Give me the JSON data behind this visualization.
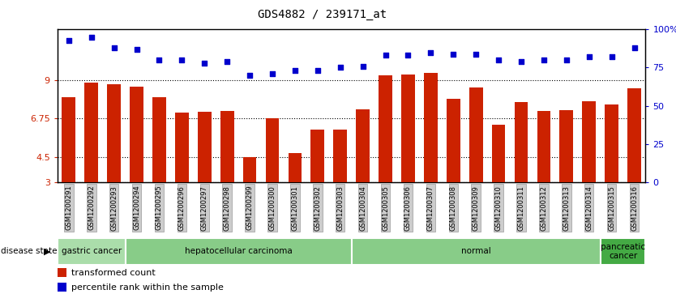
{
  "title": "GDS4882 / 239171_at",
  "samples": [
    "GSM1200291",
    "GSM1200292",
    "GSM1200293",
    "GSM1200294",
    "GSM1200295",
    "GSM1200296",
    "GSM1200297",
    "GSM1200298",
    "GSM1200299",
    "GSM1200300",
    "GSM1200301",
    "GSM1200302",
    "GSM1200303",
    "GSM1200304",
    "GSM1200305",
    "GSM1200306",
    "GSM1200307",
    "GSM1200308",
    "GSM1200309",
    "GSM1200310",
    "GSM1200311",
    "GSM1200312",
    "GSM1200313",
    "GSM1200314",
    "GSM1200315",
    "GSM1200316"
  ],
  "bar_values": [
    8.0,
    8.85,
    8.75,
    8.65,
    8.0,
    7.1,
    7.15,
    7.2,
    4.5,
    6.75,
    4.7,
    6.1,
    6.1,
    7.3,
    9.3,
    9.35,
    9.45,
    7.9,
    8.6,
    6.4,
    7.7,
    7.2,
    7.25,
    7.75,
    7.6,
    8.55
  ],
  "percentile_values": [
    93,
    95,
    88,
    87,
    80,
    80,
    78,
    79,
    70,
    71,
    73,
    73,
    75,
    76,
    83,
    83,
    85,
    84,
    84,
    80,
    79,
    80,
    80,
    82,
    82,
    88
  ],
  "bar_color": "#cc2200",
  "dot_color": "#0000cc",
  "ylim_left": [
    3,
    12
  ],
  "yticks_left": [
    3,
    4.5,
    6.75,
    9
  ],
  "ytick_labels_left": [
    "3",
    "4.5",
    "6.75",
    "9"
  ],
  "ylim_right": [
    0,
    100
  ],
  "yticks_right": [
    0,
    25,
    50,
    75,
    100
  ],
  "ytick_labels_right": [
    "0",
    "25",
    "50",
    "75",
    "100%"
  ],
  "groups": [
    {
      "label": "gastric cancer",
      "start": 0,
      "end": 3,
      "color": "#aaddaa"
    },
    {
      "label": "hepatocellular carcinoma",
      "start": 3,
      "end": 13,
      "color": "#88cc88"
    },
    {
      "label": "normal",
      "start": 13,
      "end": 24,
      "color": "#88cc88"
    },
    {
      "label": "pancreatic\ncancer",
      "start": 24,
      "end": 26,
      "color": "#44aa44"
    }
  ],
  "disease_state_label": "disease state",
  "legend_bar_label": "transformed count",
  "legend_dot_label": "percentile rank within the sample",
  "bg_color": "#ffffff",
  "tick_label_bg": "#cccccc",
  "tick_label_edge": "#999999"
}
